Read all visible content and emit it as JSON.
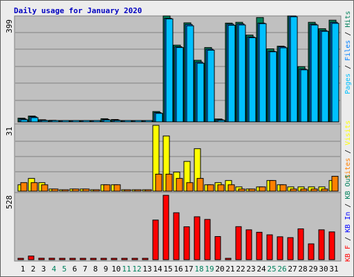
{
  "chart_data": [
    {
      "type": "bar",
      "title": "Daily usage for January 2020",
      "categories": [
        "1",
        "2",
        "3",
        "4",
        "5",
        "6",
        "7",
        "8",
        "9",
        "10",
        "11",
        "12",
        "13",
        "14",
        "15",
        "16",
        "17",
        "18",
        "19",
        "20",
        "21",
        "22",
        "23",
        "24",
        "25",
        "26",
        "27",
        "28",
        "29",
        "30",
        "31"
      ],
      "weekend_days": [
        "4",
        "5",
        "11",
        "12",
        "18",
        "19",
        "25",
        "26"
      ],
      "ylabel_max": "399",
      "ylim": [
        0,
        399
      ],
      "legend": [
        "Pages",
        "Files",
        "Hits"
      ],
      "series": [
        {
          "name": "Hits",
          "color": "#00805c",
          "values": [
            14,
            22,
            8,
            6,
            0,
            5,
            5,
            0,
            12,
            9,
            0,
            0,
            0,
            39,
            399,
            289,
            373,
            232,
            280,
            11,
            372,
            375,
            327,
            393,
            275,
            285,
            399,
            208,
            375,
            351,
            383
          ]
        },
        {
          "name": "Files",
          "color": "#0080ff",
          "values": [
            11,
            19,
            6,
            4,
            0,
            3,
            3,
            0,
            9,
            7,
            0,
            0,
            0,
            35,
            390,
            283,
            367,
            225,
            274,
            8,
            368,
            369,
            320,
            372,
            266,
            283,
            399,
            199,
            368,
            344,
            375
          ]
        },
        {
          "name": "Pages",
          "color": "#00c0ff",
          "values": [
            8,
            16,
            5,
            3,
            0,
            2,
            2,
            0,
            7,
            5,
            0,
            0,
            0,
            32,
            388,
            280,
            362,
            221,
            270,
            6,
            364,
            365,
            317,
            370,
            264,
            279,
            396,
            196,
            365,
            341,
            371
          ]
        }
      ]
    },
    {
      "type": "bar",
      "ylabel_max": "31",
      "ylim": [
        0,
        31
      ],
      "legend": [
        "Sites",
        "Visits"
      ],
      "series": [
        {
          "name": "Visits",
          "color": "#ffff00",
          "values": [
            3,
            6,
            4,
            1,
            0,
            1,
            1,
            0,
            3,
            3,
            0,
            0,
            0,
            31,
            26,
            9,
            14,
            20,
            3,
            4,
            5,
            2,
            1,
            2,
            5,
            3,
            2,
            2,
            2,
            2,
            5
          ]
        },
        {
          "name": "Sites",
          "color": "#ff8000",
          "values": [
            4,
            4,
            3,
            1,
            0,
            1,
            1,
            0,
            3,
            3,
            0,
            0,
            0,
            8,
            8,
            6,
            4,
            6,
            3,
            3,
            3,
            1,
            1,
            2,
            5,
            3,
            1,
            1,
            1,
            1,
            7
          ]
        }
      ]
    },
    {
      "type": "bar",
      "ylabel_max": "528",
      "ylim": [
        0,
        528
      ],
      "legend": [
        "KB F",
        "KB In",
        "KB Out"
      ],
      "series": [
        {
          "name": "KB F",
          "color": "#ff0000",
          "values": [
            10,
            30,
            12,
            12,
            0,
            6,
            6,
            0,
            6,
            6,
            0,
            0,
            0,
            325,
            528,
            385,
            270,
            352,
            330,
            190,
            0,
            271,
            245,
            225,
            204,
            188,
            181,
            253,
            130,
            245,
            228,
            250
          ]
        }
      ]
    }
  ]
}
